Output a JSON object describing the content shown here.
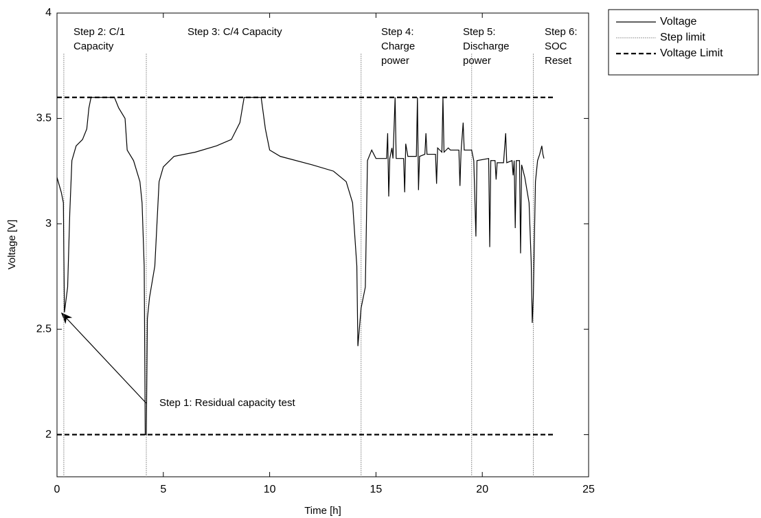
{
  "chart_data": {
    "type": "line",
    "xlabel": "Time [h]",
    "ylabel": "Voltage [V]",
    "xlim": [
      0,
      25
    ],
    "xticks": [
      0,
      5,
      10,
      15,
      20,
      25
    ],
    "ylim": [
      1.8,
      4
    ],
    "yticks": [
      2,
      2.5,
      3,
      3.5,
      4
    ],
    "grid": false,
    "legend": "outside-top-right",
    "series": [
      {
        "name": "Voltage",
        "color": "#000000",
        "x": [
          0,
          0.2,
          0.3,
          0.32,
          0.35,
          0.4,
          0.5,
          0.6,
          0.7,
          0.9,
          1.2,
          1.4,
          1.5,
          1.6,
          2.7,
          2.9,
          3.2,
          3.3,
          3.6,
          3.9,
          4.0,
          4.1,
          4.15,
          4.2,
          4.25,
          4.35,
          4.6,
          4.8,
          5.0,
          5.5,
          6.5,
          7.5,
          8.2,
          8.6,
          8.8,
          9.6,
          9.8,
          10.0,
          10.5,
          12.0,
          13.0,
          13.6,
          13.9,
          14.1,
          14.15,
          14.3,
          14.5,
          14.6,
          14.8,
          15.0,
          15.5,
          15.55,
          15.6,
          15.65,
          15.75,
          15.8,
          15.9,
          15.95,
          16.3,
          16.35,
          16.4,
          16.5,
          16.9,
          16.95,
          17.0,
          17.05,
          17.3,
          17.35,
          17.4,
          17.8,
          17.85,
          17.9,
          18.1,
          18.15,
          18.2,
          18.4,
          18.5,
          18.9,
          18.95,
          19.0,
          19.1,
          19.15,
          19.5,
          19.6,
          19.7,
          19.75,
          20.3,
          20.35,
          20.4,
          20.6,
          20.65,
          20.7,
          21.0,
          21.1,
          21.15,
          21.4,
          21.45,
          21.5,
          21.55,
          21.6,
          21.75,
          21.8,
          21.85,
          22.0,
          22.2,
          22.3,
          22.35,
          22.4,
          22.5,
          22.6,
          22.7,
          22.8,
          22.85,
          22.9
        ],
        "values": [
          3.22,
          3.15,
          3.1,
          2.87,
          2.58,
          2.62,
          2.7,
          3.05,
          3.3,
          3.37,
          3.4,
          3.45,
          3.55,
          3.6,
          3.6,
          3.55,
          3.5,
          3.35,
          3.3,
          3.2,
          3.1,
          2.8,
          2.0,
          2.0,
          2.55,
          2.65,
          2.8,
          3.2,
          3.27,
          3.32,
          3.34,
          3.37,
          3.4,
          3.48,
          3.6,
          3.6,
          3.45,
          3.35,
          3.32,
          3.28,
          3.25,
          3.2,
          3.1,
          2.8,
          2.42,
          2.6,
          2.7,
          3.3,
          3.35,
          3.31,
          3.31,
          3.43,
          3.13,
          3.31,
          3.36,
          3.31,
          3.6,
          3.31,
          3.31,
          3.15,
          3.38,
          3.32,
          3.32,
          3.6,
          3.16,
          3.32,
          3.33,
          3.43,
          3.33,
          3.33,
          3.19,
          3.36,
          3.34,
          3.6,
          3.34,
          3.36,
          3.35,
          3.35,
          3.18,
          3.34,
          3.48,
          3.35,
          3.35,
          3.3,
          2.94,
          3.3,
          3.31,
          2.89,
          3.3,
          3.3,
          3.21,
          3.29,
          3.29,
          3.43,
          3.29,
          3.3,
          3.23,
          3.3,
          2.98,
          3.3,
          3.3,
          2.86,
          3.28,
          3.22,
          3.1,
          2.82,
          2.53,
          2.65,
          3.2,
          3.3,
          3.33,
          3.37,
          3.33,
          3.31
        ]
      },
      {
        "name": "Step limit",
        "color": "#999999",
        "x": [
          0.32,
          4.2,
          14.3,
          19.5,
          22.4
        ]
      },
      {
        "name": "Voltage Limit",
        "color": "#000000",
        "values": [
          3.6,
          2.0
        ]
      }
    ],
    "annotations": [
      "Step 1: Residual capacity test"
    ],
    "step_labels": [
      [
        "Step 2: C/1",
        "Capacity"
      ],
      [
        "Step 3: C/4 Capacity"
      ],
      [
        "Step 4:",
        "Charge",
        "power"
      ],
      [
        "Step 5:",
        "Discharge",
        "power"
      ],
      [
        "Step 6:",
        "SOC",
        "Reset"
      ]
    ]
  }
}
